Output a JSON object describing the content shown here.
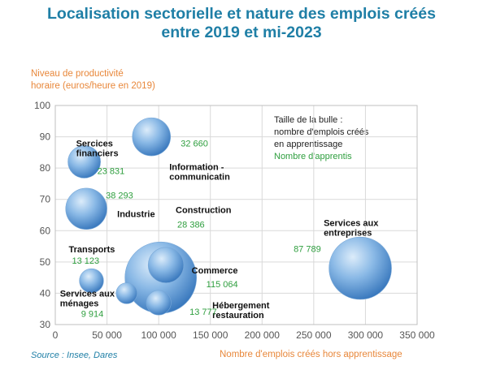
{
  "chart_data": {
    "type": "bubble",
    "title": "Localisation sectorielle et nature des emplois créés entre 2019 et mi-2023",
    "ylabel_lines": [
      "Niveau de productivité",
      "horaire (euros/heure en 2019)"
    ],
    "xlabel": "Nombre d'emplois créés hors apprentissage",
    "source": "Source : Insee, Dares",
    "legend_lines": [
      "Taille de la bulle :",
      "nombre d'emplois créés",
      "en apprentissage"
    ],
    "legend_green": "Nombre d'apprentis",
    "xlim": [
      0,
      350000
    ],
    "ylim": [
      30,
      100
    ],
    "xticks": [
      "0",
      "50000",
      "100000",
      "150000",
      "200000",
      "250000",
      "300000",
      "350000"
    ],
    "xtick_values": [
      0,
      50000,
      100000,
      150000,
      200000,
      250000,
      300000,
      350000
    ],
    "yticks": [
      "30",
      "40",
      "50",
      "60",
      "70",
      "80",
      "90",
      "100"
    ],
    "ytick_values": [
      30,
      40,
      50,
      60,
      70,
      80,
      90,
      100
    ],
    "grid": true,
    "points": [
      {
        "name_lines": [
          "Sercices",
          "financiers"
        ],
        "x": 28000,
        "y": 82,
        "size": 23831,
        "size_label": "23 831"
      },
      {
        "name_lines": [
          "Information -",
          "communicatin"
        ],
        "x": 93000,
        "y": 90,
        "size": 32660,
        "size_label": "32 660"
      },
      {
        "name_lines": [
          "Industrie"
        ],
        "x": 30000,
        "y": 67,
        "size": 38293,
        "size_label": "38 293"
      },
      {
        "name_lines": [
          "Construction"
        ],
        "x": 107000,
        "y": 49,
        "size": 28386,
        "size_label": "28 386"
      },
      {
        "name_lines": [
          "Commerce"
        ],
        "x": 102000,
        "y": 45,
        "size": 115064,
        "size_label": "115 064"
      },
      {
        "name_lines": [
          "Transports"
        ],
        "x": 35000,
        "y": 44,
        "size": 13123,
        "size_label": "13 123"
      },
      {
        "name_lines": [
          "Services aux",
          "ménages"
        ],
        "x": 69000,
        "y": 40,
        "size": 9914,
        "size_label": "9 914"
      },
      {
        "name_lines": [
          "Hébergement",
          "restauration"
        ],
        "x": 100000,
        "y": 37,
        "size": 13777,
        "size_label": "13 777"
      },
      {
        "name_lines": [
          "Services aux",
          "entreprises"
        ],
        "x": 295000,
        "y": 48,
        "size": 87789,
        "size_label": "87 789"
      }
    ],
    "colors": {
      "title": "#1f7fa6",
      "axis_label": "#e8873a",
      "value_label": "#2e9e3e",
      "bubble": "#5b9bd5"
    }
  }
}
